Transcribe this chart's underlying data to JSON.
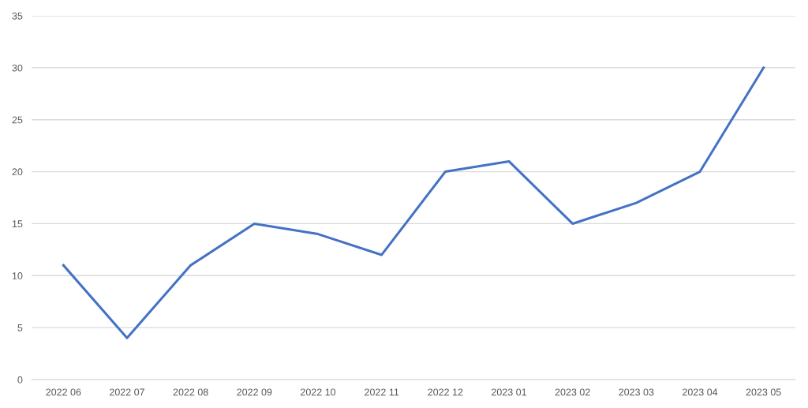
{
  "chart_data": {
    "type": "line",
    "categories": [
      "2022 06",
      "2022 07",
      "2022 08",
      "2022 09",
      "2022 10",
      "2022 11",
      "2022 12",
      "2023 01",
      "2023 02",
      "2023 03",
      "2023 04",
      "2023 05"
    ],
    "series": [
      {
        "color": "#4472c4",
        "values": [
          11,
          4,
          11,
          15,
          14,
          12,
          20,
          21,
          15,
          17,
          20,
          30
        ]
      }
    ],
    "ylim": [
      0,
      35
    ],
    "yticks": [
      0,
      5,
      10,
      15,
      20,
      25,
      30,
      35
    ],
    "grid": "y",
    "legend": false,
    "marker": "none",
    "line_style": "solid"
  }
}
